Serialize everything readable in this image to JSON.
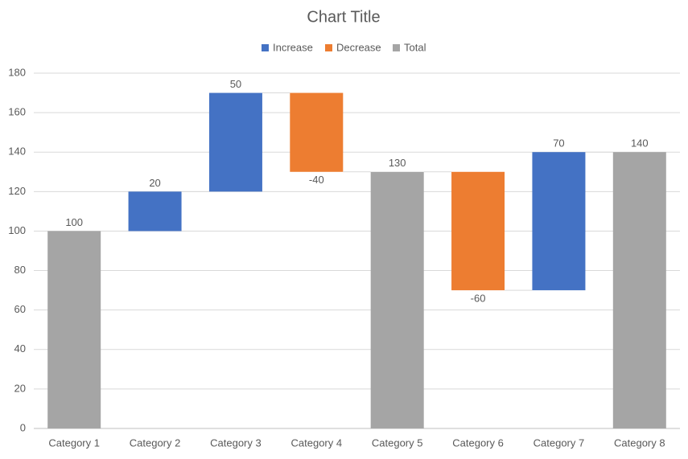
{
  "chart_data": {
    "type": "waterfall",
    "title": "Chart Title",
    "categories": [
      "Category 1",
      "Category 2",
      "Category 3",
      "Category 4",
      "Category 5",
      "Category 6",
      "Category 7",
      "Category 8"
    ],
    "series": [
      {
        "name": "Increase",
        "color": "#4472c4",
        "values": [
          null,
          20,
          50,
          null,
          null,
          null,
          70,
          null
        ]
      },
      {
        "name": "Decrease",
        "color": "#ed7d31",
        "values": [
          null,
          null,
          null,
          -40,
          null,
          -60,
          null,
          null
        ]
      },
      {
        "name": "Total",
        "color": "#a5a5a5",
        "values": [
          100,
          null,
          null,
          null,
          130,
          null,
          null,
          140
        ]
      }
    ],
    "ylim": [
      0,
      180
    ],
    "yticks": [
      0,
      20,
      40,
      60,
      80,
      100,
      120,
      140,
      160,
      180
    ],
    "grid": true,
    "legend": "top"
  }
}
